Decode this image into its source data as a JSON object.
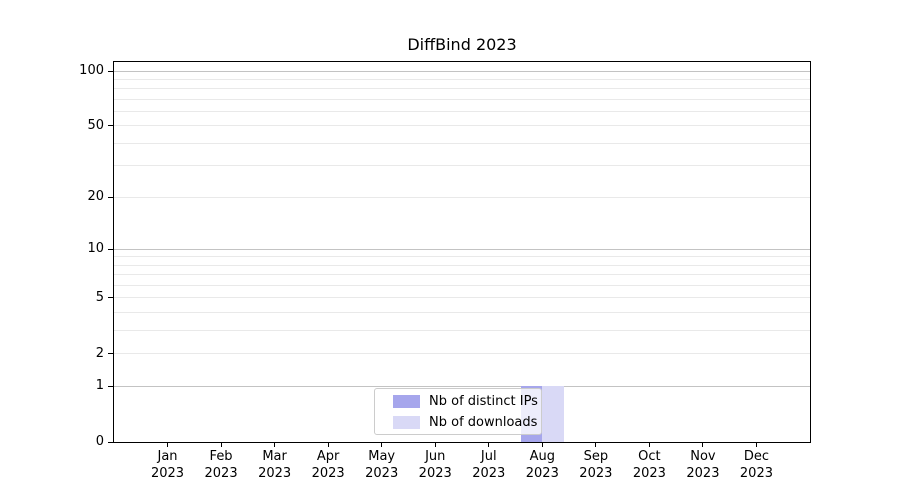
{
  "chart_data": {
    "type": "bar",
    "title": "DiffBind 2023",
    "categories": [
      "Jan 2023",
      "Feb 2023",
      "Mar 2023",
      "Apr 2023",
      "May 2023",
      "Jun 2023",
      "Jul 2023",
      "Aug 2023",
      "Sep 2023",
      "Oct 2023",
      "Nov 2023",
      "Dec 2023"
    ],
    "x_tick_months": [
      "Jan",
      "Feb",
      "Mar",
      "Apr",
      "May",
      "Jun",
      "Jul",
      "Aug",
      "Sep",
      "Oct",
      "Nov",
      "Dec"
    ],
    "x_tick_year": "2023",
    "series": [
      {
        "name": "Nb of distinct IPs",
        "color": "#a6a6ec",
        "values": [
          0,
          0,
          0,
          0,
          0,
          0,
          0,
          1,
          0,
          0,
          0,
          0
        ]
      },
      {
        "name": "Nb of downloads",
        "color": "#d9d9f6",
        "values": [
          0,
          0,
          0,
          0,
          0,
          0,
          0,
          1,
          0,
          0,
          0,
          0
        ]
      }
    ],
    "xlabel": "",
    "ylabel": "",
    "yscale": "log1p",
    "ylim": [
      0,
      112
    ],
    "xlim": [
      -1,
      12
    ],
    "y_tick_labels": [
      0,
      1,
      2,
      5,
      10,
      20,
      50,
      100
    ],
    "y_major_gridlines": [
      1,
      10,
      100
    ],
    "y_minor_gridlines": [
      2,
      3,
      4,
      5,
      6,
      7,
      8,
      9,
      20,
      30,
      40,
      50,
      60,
      70,
      80,
      90
    ],
    "grid": "horizontal",
    "legend_position": "lower center"
  },
  "colors": {
    "bar_distinct_ips": "#a6a6ec",
    "bar_downloads": "#d9d9f6",
    "major_gridline": "#c3c3c3",
    "minor_gridline": "#e9e9e9",
    "axis_line": "#000000",
    "legend_border": "#cccccc",
    "legend_background": "rgba(255,255,255,0.8)"
  }
}
